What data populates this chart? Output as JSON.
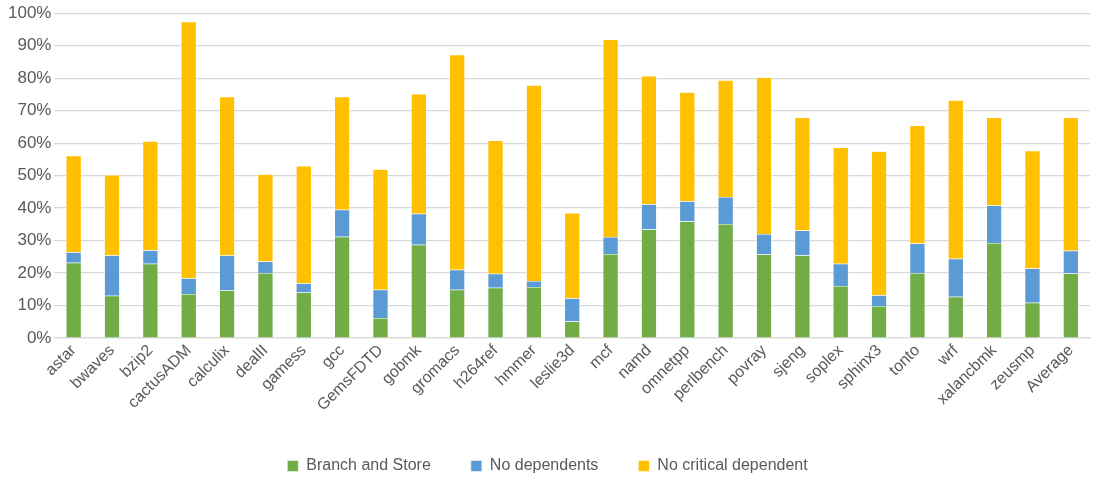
{
  "chart_data": {
    "type": "bar",
    "stacked": true,
    "categories": [
      "astar",
      "bwaves",
      "bzip2",
      "cactusADM",
      "calculix",
      "dealII",
      "gamess",
      "gcc",
      "GemsFDTD",
      "gobmk",
      "gromacs",
      "h264ref",
      "hmmer",
      "leslie3d",
      "mcf",
      "namd",
      "omnetpp",
      "perlbench",
      "povray",
      "sjeng",
      "soplex",
      "sphinx3",
      "tonto",
      "wrf",
      "xalancbmk",
      "zeusmp",
      "Average"
    ],
    "series": [
      {
        "name": "Branch and Store",
        "color": "#70ad47",
        "values": [
          23.2,
          13.0,
          22.9,
          13.6,
          14.7,
          20.0,
          14.1,
          31.2,
          6.2,
          28.7,
          14.9,
          15.5,
          15.7,
          5.1,
          25.9,
          33.4,
          35.9,
          35.1,
          25.7,
          25.4,
          16.0,
          9.9,
          20.0,
          12.7,
          29.3,
          10.9,
          19.9
        ]
      },
      {
        "name": "No dependents",
        "color": "#5b9bd5",
        "values": [
          3.2,
          12.4,
          4.1,
          4.8,
          10.7,
          3.6,
          2.8,
          8.3,
          8.7,
          9.6,
          6.1,
          4.3,
          1.9,
          7.2,
          5.2,
          7.8,
          6.2,
          8.3,
          6.3,
          7.7,
          6.9,
          3.3,
          9.1,
          11.7,
          11.5,
          10.5,
          7.0
        ]
      },
      {
        "name": "No critical dependent",
        "color": "#ffc000",
        "values": [
          29.7,
          24.8,
          33.6,
          79.0,
          48.9,
          26.8,
          36.1,
          34.8,
          37.1,
          36.8,
          66.2,
          41.0,
          60.2,
          26.2,
          60.8,
          39.5,
          33.6,
          36.0,
          48.2,
          34.8,
          35.8,
          44.3,
          36.3,
          48.8,
          27.1,
          36.3,
          41.0
        ]
      }
    ],
    "ylim": [
      0,
      100
    ],
    "yticks": [
      {
        "value": 0,
        "label": "0%"
      },
      {
        "value": 10,
        "label": "10%"
      },
      {
        "value": 20,
        "label": "20%"
      },
      {
        "value": 30,
        "label": "30%"
      },
      {
        "value": 40,
        "label": "40%"
      },
      {
        "value": 50,
        "label": "50%"
      },
      {
        "value": 60,
        "label": "60%"
      },
      {
        "value": 70,
        "label": "70%"
      },
      {
        "value": 80,
        "label": "80%"
      },
      {
        "value": 90,
        "label": "90%"
      },
      {
        "value": 100,
        "label": "100%"
      }
    ],
    "grid": "y",
    "legend": "bottom"
  }
}
